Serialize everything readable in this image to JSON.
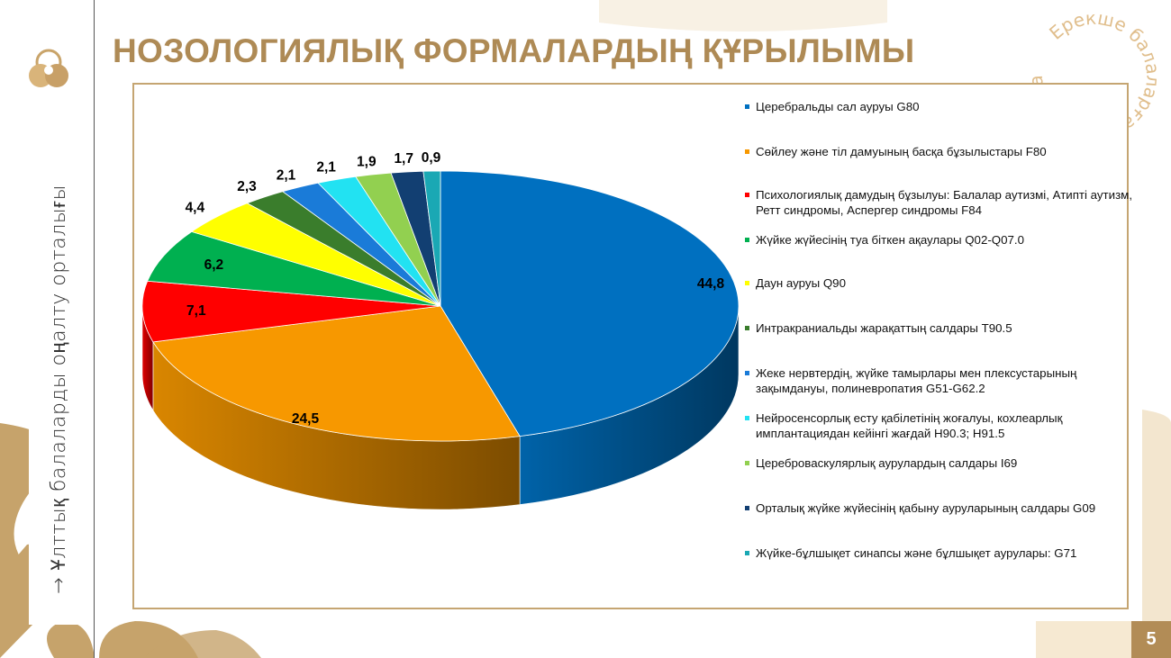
{
  "slide": {
    "title": "НОЗОЛОГИЯЛЫҚ ФОРМАЛАРДЫҢ ҚҰРЫЛЫМЫ",
    "side_text": "→   Ұлттық балаларды оңалту орталығы",
    "stamp_text": "Ерекше балаларға, Ерекше қамқорлық",
    "page_number": "5"
  },
  "colors": {
    "gold": "#AE8A55",
    "frame": "#C5A572"
  },
  "chart_data": {
    "type": "pie",
    "three_d": true,
    "start": "top, clockwise",
    "legend_position": "right",
    "categories": [
      "Церебральды сал ауруы G80",
      "Сөйлеу және тіл дамуының басқа бұзылыстары F80",
      "Психологиялық дамудың бұзылуы: Балалар аутизмі, Атипті аутизм, Ретт синдромы, Аспергер синдромы F84",
      "Жүйке жүйесінің туа біткен ақаулары Q02-Q07.0",
      "Даун ауруы Q90",
      "Интракраниальды жарақаттың салдары T90.5",
      "Жеке нервтердің, жүйке тамырлары мен плексустарының зақымдануы, полиневропатия G51-G62.2",
      "Нейросенсорлық есту қабілетінің жоғалуы, кохлеарлық имплантациядан кейінгі жағдай H90.3; H91.5",
      "Цереброваскулярлық аурулардың салдары I69",
      "Орталық жүйке жүйесінің қабыну ауруларының салдары G09",
      "Жүйке-бұлшықет синапсы және бұлшықет аурулары: G71"
    ],
    "values": [
      44.8,
      24.5,
      7.1,
      6.2,
      4.4,
      2.3,
      2.1,
      2.1,
      1.9,
      1.7,
      0.9
    ],
    "labels": [
      "44,8",
      "24,5",
      "7,1",
      "6,2",
      "4,4",
      "2,3",
      "2,1",
      "2,1",
      "1,9",
      "1,7",
      "0,9"
    ],
    "colors": [
      "#0070C0",
      "#F79800",
      "#FF0000",
      "#00B050",
      "#FFFF00",
      "#3A7D2C",
      "#1A7BD8",
      "#22E2F2",
      "#92D050",
      "#123F72",
      "#1AA8B4"
    ]
  }
}
